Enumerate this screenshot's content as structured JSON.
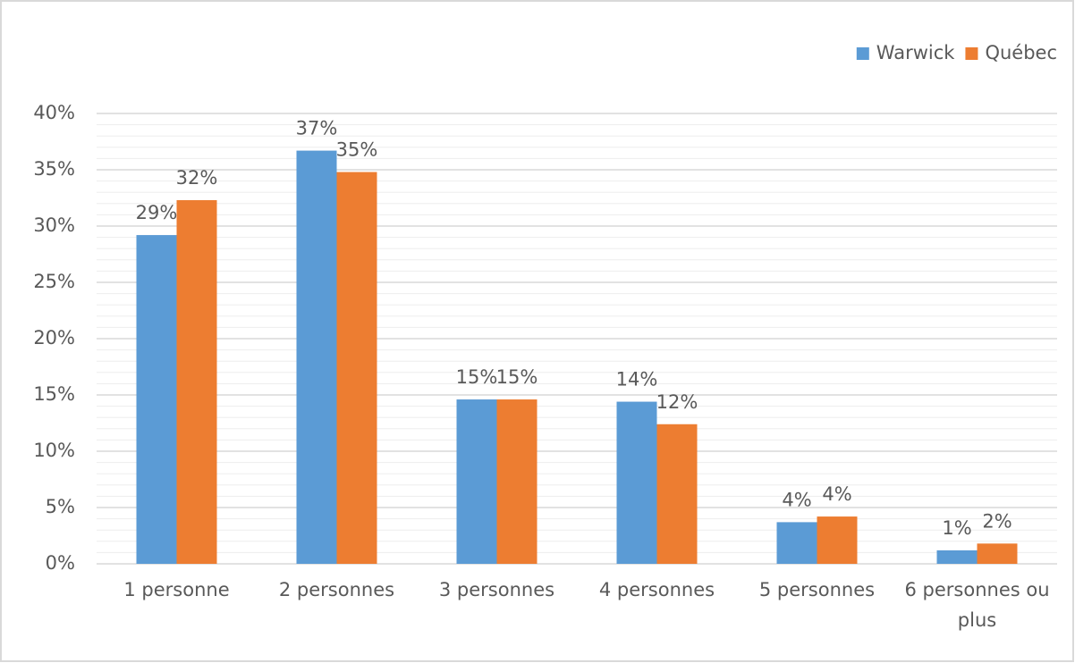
{
  "chart_data": {
    "type": "bar",
    "categories": [
      "1 personne",
      "2 personnes",
      "3 personnes",
      "4 personnes",
      "5 personnes",
      "6 personnes ou plus"
    ],
    "series": [
      {
        "name": "Warwick",
        "color": "#5b9bd5",
        "values": [
          29.2,
          36.7,
          14.6,
          14.4,
          3.7,
          1.2
        ],
        "value_labels": [
          "29%",
          "37%",
          "15%",
          "14%",
          "4%",
          "1%"
        ]
      },
      {
        "name": "Québec",
        "color": "#ed7d31",
        "values": [
          32.3,
          34.8,
          14.6,
          12.4,
          4.2,
          1.8
        ],
        "value_labels": [
          "32%",
          "35%",
          "15%",
          "12%",
          "4%",
          "2%"
        ]
      }
    ],
    "ylim": [
      0,
      40
    ],
    "yticks": [
      {
        "value": 0,
        "label": "0%"
      },
      {
        "value": 5,
        "label": "5%"
      },
      {
        "value": 10,
        "label": "10%"
      },
      {
        "value": 15,
        "label": "15%"
      },
      {
        "value": 20,
        "label": "20%"
      },
      {
        "value": 25,
        "label": "25%"
      },
      {
        "value": 30,
        "label": "30%"
      },
      {
        "value": 35,
        "label": "35%"
      },
      {
        "value": 40,
        "label": "40%"
      }
    ],
    "minor_yticks": [
      1,
      2,
      3,
      4,
      6,
      7,
      8,
      9,
      11,
      12,
      13,
      14,
      16,
      17,
      18,
      19,
      21,
      22,
      23,
      24,
      26,
      27,
      28,
      29,
      31,
      32,
      33,
      34,
      36,
      37,
      38,
      39
    ],
    "grid": true,
    "legend": "top-right"
  }
}
